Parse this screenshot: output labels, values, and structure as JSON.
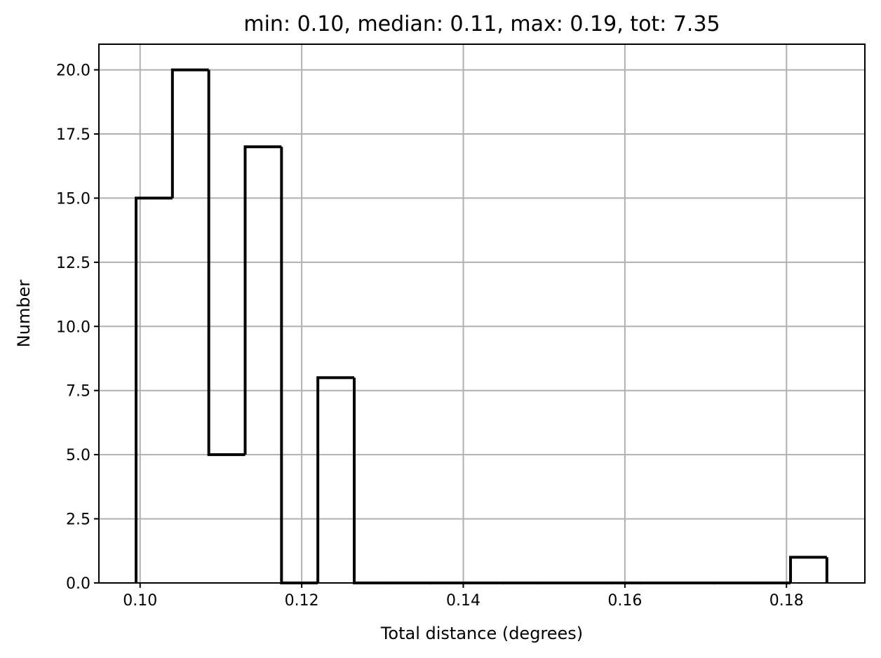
{
  "chart_data": {
    "type": "bar",
    "style": "step histogram",
    "title": "min: 0.10, median: 0.11, max: 0.19, tot: 7.35",
    "xlabel": "Total distance (degrees)",
    "ylabel": "Number",
    "xlim": [
      0.0949,
      0.1897
    ],
    "ylim": [
      0,
      21
    ],
    "grid": true,
    "legend": "none",
    "bin_edges": [
      0.0995,
      0.104,
      0.1085,
      0.113,
      0.1175,
      0.122,
      0.1265,
      0.131,
      0.1355,
      0.14,
      0.1445,
      0.149,
      0.1535,
      0.158,
      0.1625,
      0.167,
      0.1715,
      0.176,
      0.1805,
      0.185
    ],
    "values": [
      15,
      20,
      5,
      17,
      0,
      8,
      0,
      0,
      0,
      0,
      0,
      0,
      0,
      0,
      0,
      0,
      0,
      0,
      1
    ],
    "x_ticks": [
      {
        "value": 0.1,
        "label": "0.10"
      },
      {
        "value": 0.12,
        "label": "0.12"
      },
      {
        "value": 0.14,
        "label": "0.14"
      },
      {
        "value": 0.16,
        "label": "0.16"
      },
      {
        "value": 0.18,
        "label": "0.18"
      }
    ],
    "y_ticks": [
      {
        "value": 0,
        "label": "0.0"
      },
      {
        "value": 2.5,
        "label": "2.5"
      },
      {
        "value": 5,
        "label": "5.0"
      },
      {
        "value": 7.5,
        "label": "7.5"
      },
      {
        "value": 10,
        "label": "10.0"
      },
      {
        "value": 12.5,
        "label": "12.5"
      },
      {
        "value": 15,
        "label": "15.0"
      },
      {
        "value": 17.5,
        "label": "17.5"
      },
      {
        "value": 20,
        "label": "20.0"
      }
    ]
  },
  "colors": {
    "bars": "#000000",
    "grid": "#b0b0b0",
    "background": "#ffffff"
  }
}
